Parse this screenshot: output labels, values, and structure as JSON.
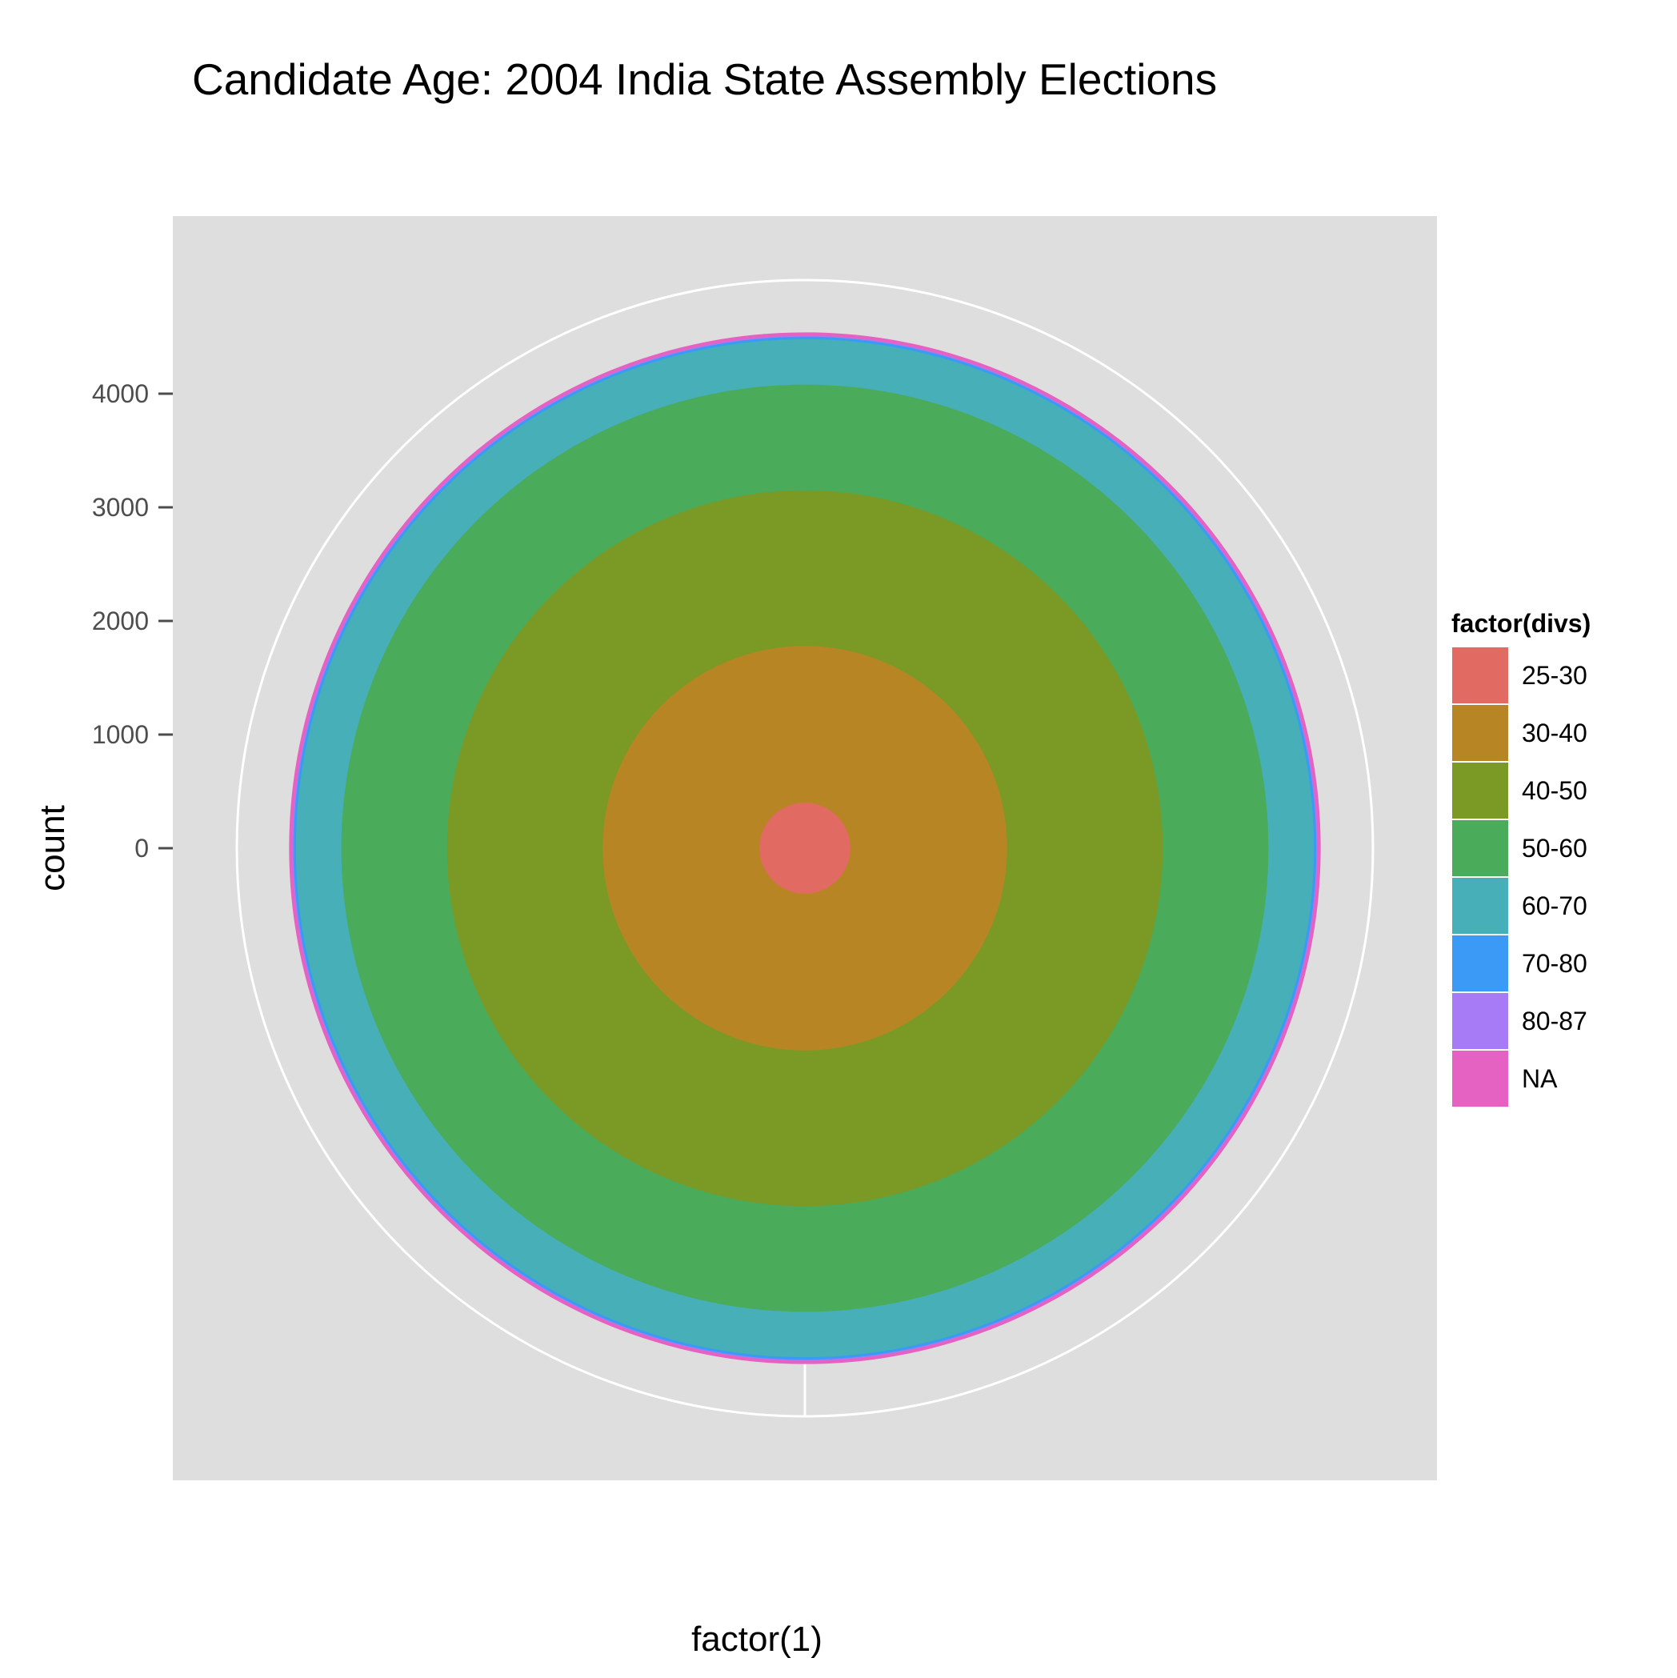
{
  "chart_data": {
    "type": "pie",
    "title": "Candidate Age: 2004 India State Assembly Elections",
    "xlabel": "factor(1)",
    "ylabel": "count",
    "y_ticks": [
      0,
      1000,
      2000,
      3000,
      4000
    ],
    "y_tick_labels": [
      "0",
      "1000",
      "2000",
      "3000",
      "4000"
    ],
    "ylim": [
      0,
      5000
    ],
    "legend": {
      "title": "factor(divs)",
      "placement": "right"
    },
    "categories": [
      "25-30",
      "30-40",
      "40-50",
      "50-60",
      "60-70",
      "70-80",
      "80-87",
      "NA"
    ],
    "values": [
      400,
      1380,
      1370,
      930,
      400,
      22,
      8,
      30
    ],
    "cumulative": [
      400,
      1780,
      3150,
      4080,
      4480,
      4502,
      4510,
      4540
    ],
    "colors": [
      "#E16A62",
      "#B88524",
      "#7A9A25",
      "#4AAB5B",
      "#46AFB8",
      "#3A9AF6",
      "#A77BF5",
      "#E662C2"
    ],
    "panel_background": "#DEDEDE",
    "grid_color": "#FFFFFF",
    "grid": true
  }
}
